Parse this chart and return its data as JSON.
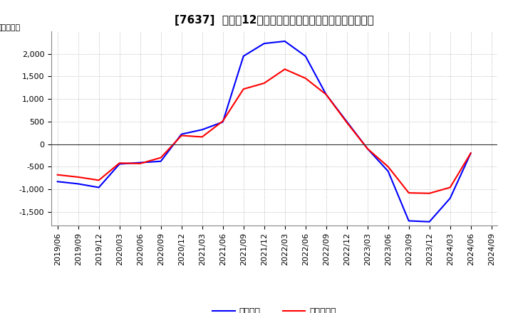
{
  "title": "[7637]  利益だ12か月移動合計の対前年同期増減額の推移",
  "ylabel": "（百万円）",
  "background_color": "#ffffff",
  "plot_bg_color": "#ffffff",
  "grid_color": "#aaaaaa",
  "line_color_blue": "#0000ff",
  "line_color_red": "#ff0000",
  "legend_blue": "経常利益",
  "legend_red": "当期純利益",
  "x_labels": [
    "2019/06",
    "2019/09",
    "2019/12",
    "2020/03",
    "2020/06",
    "2020/09",
    "2020/12",
    "2021/03",
    "2021/06",
    "2021/09",
    "2021/12",
    "2022/03",
    "2022/06",
    "2022/09",
    "2022/12",
    "2023/03",
    "2023/06",
    "2023/09",
    "2023/12",
    "2024/03",
    "2024/06",
    "2024/09"
  ],
  "blue_values": [
    -830,
    -880,
    -960,
    -440,
    -410,
    -380,
    220,
    320,
    490,
    1950,
    2230,
    2280,
    1950,
    1100,
    500,
    -100,
    -600,
    -1700,
    -1720,
    -1200,
    -200,
    null
  ],
  "red_values": [
    -680,
    -730,
    -800,
    -420,
    -430,
    -300,
    190,
    160,
    510,
    1220,
    1350,
    1660,
    1460,
    1100,
    480,
    -100,
    -500,
    -1080,
    -1090,
    -960,
    -200,
    null
  ],
  "ylim": [
    -1800,
    2500
  ],
  "yticks": [
    -1500,
    -1000,
    -500,
    0,
    500,
    1000,
    1500,
    2000
  ],
  "title_fontsize": 11,
  "axis_fontsize": 8,
  "legend_fontsize": 9
}
